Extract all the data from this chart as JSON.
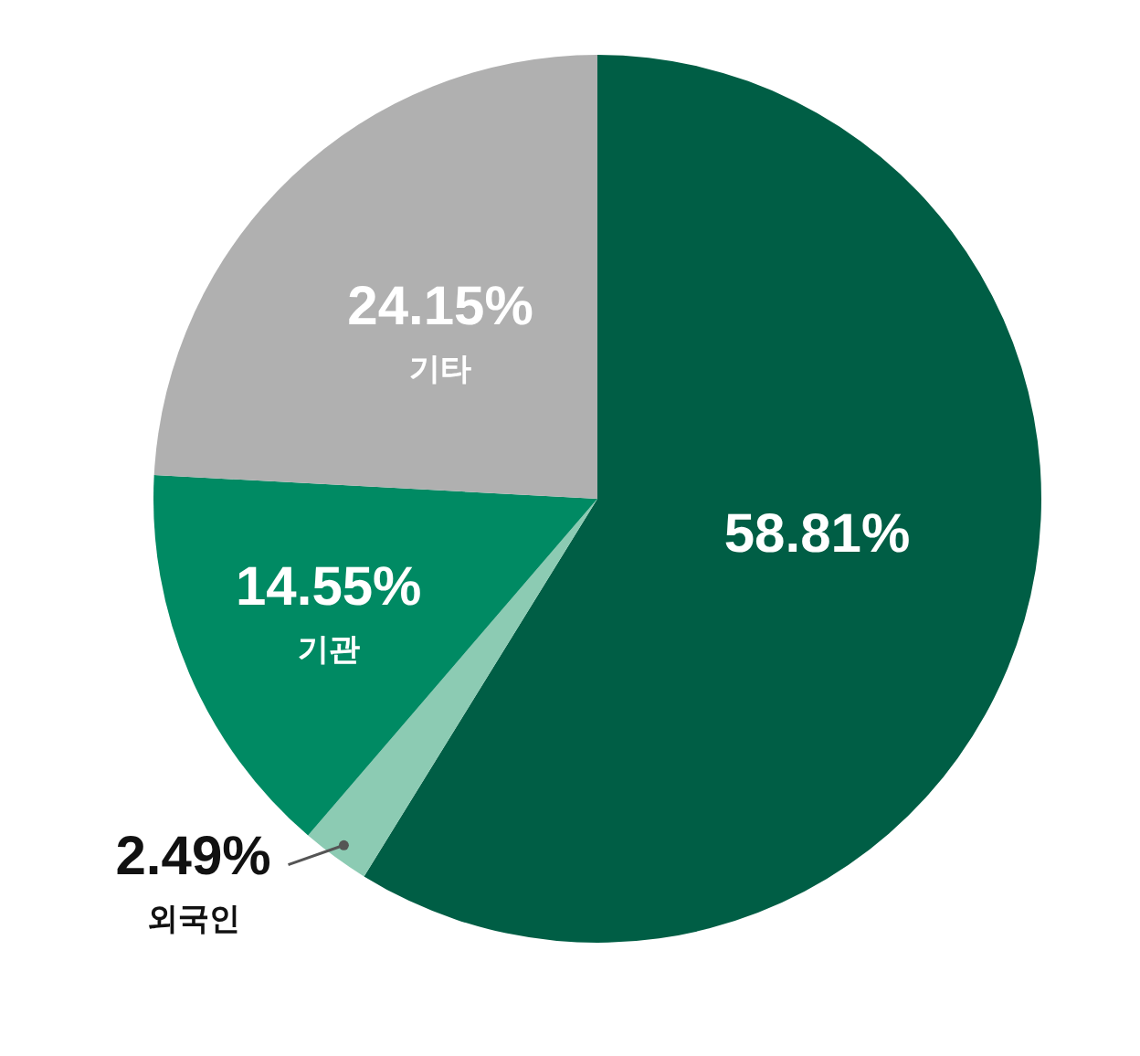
{
  "chart_data": {
    "type": "pie",
    "categories": [
      null,
      "외국인",
      "기관",
      "기타"
    ],
    "values": [
      58.81,
      2.49,
      14.55,
      24.15
    ],
    "colors": [
      "#005e45",
      "#8ccbb3",
      "#008a63",
      "#b0b0b0"
    ],
    "value_labels": [
      "58.81%",
      "2.49%",
      "14.55%",
      "24.15%"
    ]
  }
}
